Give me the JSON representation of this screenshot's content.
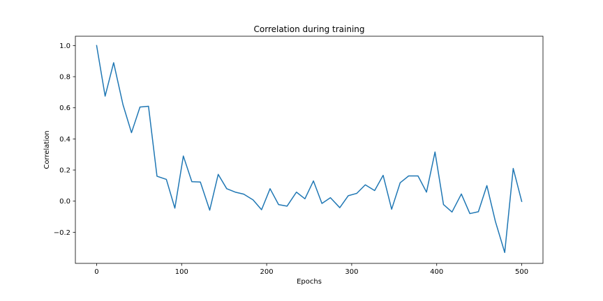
{
  "chart_data": {
    "type": "line",
    "title": "Correlation during training",
    "xlabel": "Epochs",
    "ylabel": "Correlation",
    "xlim": [
      -25,
      525
    ],
    "ylim": [
      -0.4,
      1.06
    ],
    "xticks": [
      0,
      100,
      200,
      300,
      400,
      500
    ],
    "xtick_labels": [
      "0",
      "100",
      "200",
      "300",
      "400",
      "500"
    ],
    "yticks": [
      -0.2,
      0.0,
      0.2,
      0.4,
      0.6,
      0.8,
      1.0
    ],
    "ytick_labels": [
      "−0.2",
      "0.0",
      "0.2",
      "0.4",
      "0.6",
      "0.8",
      "1.0"
    ],
    "grid": false,
    "series": [
      {
        "color": "#1f77b4",
        "x": [
          0,
          10,
          20,
          31,
          41,
          51,
          61,
          71,
          82,
          92,
          102,
          112,
          122,
          133,
          143,
          153,
          163,
          173,
          184,
          194,
          204,
          214,
          224,
          235,
          245,
          255,
          265,
          275,
          286,
          296,
          306,
          316,
          327,
          337,
          347,
          357,
          367,
          378,
          388,
          398,
          408,
          418,
          429,
          439,
          449,
          459,
          469,
          480,
          490,
          500
        ],
        "y": [
          1.0,
          0.675,
          0.89,
          0.62,
          0.44,
          0.605,
          0.61,
          0.16,
          0.14,
          -0.045,
          0.29,
          0.125,
          0.123,
          -0.058,
          0.172,
          0.08,
          0.058,
          0.045,
          0.008,
          -0.055,
          0.08,
          -0.022,
          -0.032,
          0.058,
          0.015,
          0.13,
          -0.015,
          0.022,
          -0.042,
          0.035,
          0.05,
          0.105,
          0.068,
          0.166,
          -0.052,
          0.118,
          0.162,
          0.162,
          0.058,
          0.316,
          -0.022,
          -0.07,
          0.046,
          -0.08,
          -0.068,
          0.1,
          -0.13,
          -0.33,
          0.21,
          -0.002
        ]
      }
    ]
  }
}
